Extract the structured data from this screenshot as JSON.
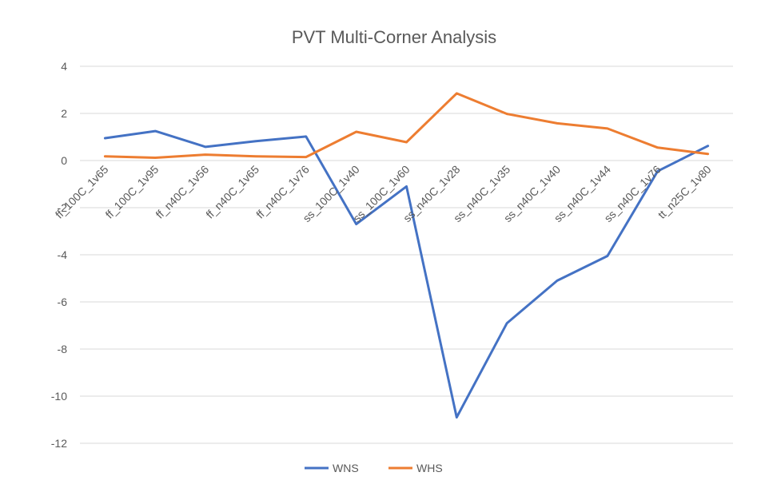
{
  "chart_data": {
    "type": "line",
    "title": "PVT Multi-Corner Analysis",
    "xlabel": "",
    "ylabel": "",
    "ylim": [
      -12,
      4
    ],
    "yticks": [
      4,
      2,
      0,
      -2,
      -4,
      -6,
      -8,
      -10,
      -12
    ],
    "grid": true,
    "legend_position": "bottom",
    "categories": [
      "ff_100C_1v65",
      "ff_100C_1v95",
      "ff_n40C_1v56",
      "ff_n40C_1v65",
      "ff_n40C_1v76",
      "ss_100C_1v40",
      "ss_100C_1v60",
      "ss_n40C_1v28",
      "ss_n40C_1v35",
      "ss_n40C_1v40",
      "ss_n40C_1v44",
      "ss_n40C_1v76",
      "tt_n25C_1v80"
    ],
    "series": [
      {
        "name": "WNS",
        "color": "#4472C4",
        "values": [
          0.95,
          1.25,
          0.58,
          0.82,
          1.02,
          -2.7,
          -1.1,
          -10.9,
          -6.9,
          -5.1,
          -4.05,
          -0.45,
          0.62
        ]
      },
      {
        "name": "WHS",
        "color": "#ED7D31",
        "values": [
          0.18,
          0.12,
          0.25,
          0.18,
          0.15,
          1.22,
          0.78,
          2.85,
          1.98,
          1.58,
          1.36,
          0.55,
          0.28
        ]
      }
    ]
  }
}
